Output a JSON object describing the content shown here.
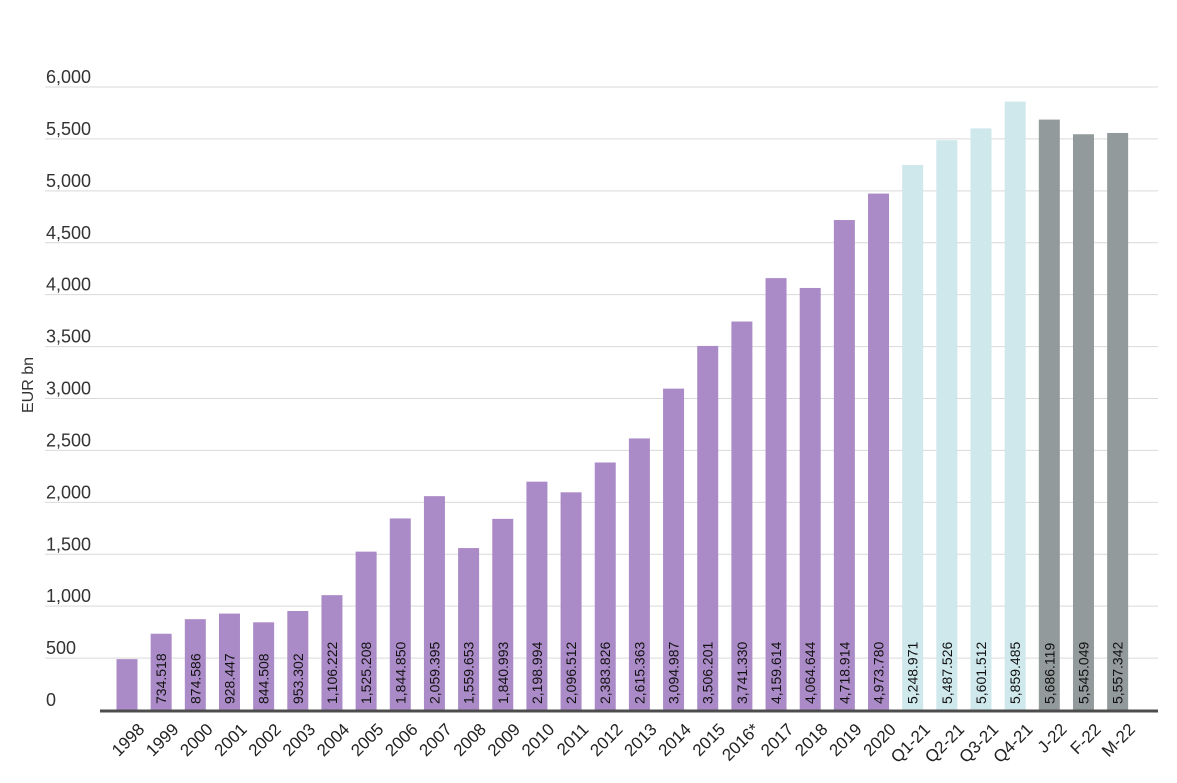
{
  "chart_data": {
    "type": "bar",
    "title": "",
    "xlabel": "",
    "ylabel": "EUR bn",
    "ylim": [
      0,
      6000
    ],
    "yticks": [
      "0",
      "500",
      "1,000",
      "1,500",
      "2,000",
      "2,500",
      "3,000",
      "3,500",
      "4,000",
      "4,500",
      "5,000",
      "5,500",
      "6,000"
    ],
    "grid": true,
    "legend": "none",
    "categories": [
      "1998",
      "1999",
      "2000",
      "2001",
      "2002",
      "2003",
      "2004",
      "2005",
      "2006",
      "2007",
      "2008",
      "2009",
      "2010",
      "2011",
      "2012",
      "2013",
      "2014",
      "2015",
      "2016*",
      "2017",
      "2018",
      "2019",
      "2020",
      "Q1-21",
      "Q2-21",
      "Q3-21",
      "Q4-21",
      "J-22",
      "F-22",
      "M-22"
    ],
    "values": [
      490,
      734.518,
      874.586,
      928.447,
      844.508,
      953.302,
      1106.222,
      1525.208,
      1844.85,
      2059.395,
      1559.653,
      1840.993,
      2198.994,
      2096.512,
      2383.826,
      2615.363,
      3094.987,
      3506.201,
      3741.33,
      4159.614,
      4064.644,
      4718.914,
      4973.78,
      5248.971,
      5487.526,
      5601.512,
      5859.485,
      5686.119,
      5545.049,
      5557.342
    ],
    "data_labels": [
      "",
      "734.518",
      "874.586",
      "928.447",
      "844.508",
      "953.302",
      "1,106.222",
      "1,525.208",
      "1,844.850",
      "2,059.395",
      "1,559.653",
      "1,840.993",
      "2,198.994",
      "2,096.512",
      "2,383.826",
      "2,615.363",
      "3,094.987",
      "3,506.201",
      "3,741.330",
      "4,159.614",
      "4,064.644",
      "4,718.914",
      "4,973.780",
      "5,248.971",
      "5,487.526",
      "5,601.512",
      "5,859.485",
      "5,686.119",
      "5,545.049",
      "5,557.342"
    ],
    "bar_groups": [
      "annual",
      "annual",
      "annual",
      "annual",
      "annual",
      "annual",
      "annual",
      "annual",
      "annual",
      "annual",
      "annual",
      "annual",
      "annual",
      "annual",
      "annual",
      "annual",
      "annual",
      "annual",
      "annual",
      "annual",
      "annual",
      "annual",
      "annual",
      "quarterly",
      "quarterly",
      "quarterly",
      "quarterly",
      "monthly",
      "monthly",
      "monthly"
    ],
    "colors": {
      "annual": "#ab8bc7",
      "quarterly": "#cfe8ec",
      "monthly": "#939a9b",
      "grid": "#d9d9d9",
      "axis": "#4d4d4d"
    }
  }
}
